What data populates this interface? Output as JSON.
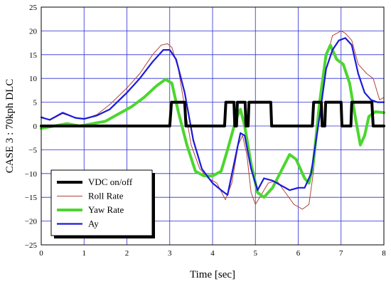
{
  "chart_data": {
    "type": "line",
    "title": "",
    "xlabel": "Time [sec]",
    "ylabel": "CASE 3 : 70kph DLC",
    "xlim": [
      0,
      8
    ],
    "ylim": [
      -25,
      25
    ],
    "x_ticks": [
      0,
      1,
      2,
      3,
      4,
      5,
      6,
      7,
      8
    ],
    "y_ticks": [
      25,
      20,
      15,
      10,
      5,
      0,
      -5,
      -10,
      -15,
      -20,
      -25
    ],
    "grid": true,
    "legend": {
      "placement": "bottom-left",
      "boxed": true
    },
    "series": [
      {
        "name": "VDC on/off",
        "color": "#000000",
        "style": "thick",
        "points": [
          [
            0,
            0
          ],
          [
            3.0,
            0
          ],
          [
            3.04,
            5
          ],
          [
            3.35,
            5
          ],
          [
            3.38,
            0
          ],
          [
            4.28,
            0
          ],
          [
            4.31,
            5
          ],
          [
            4.5,
            5
          ],
          [
            4.52,
            0
          ],
          [
            4.56,
            0
          ],
          [
            4.58,
            5
          ],
          [
            4.76,
            5
          ],
          [
            4.78,
            0
          ],
          [
            4.83,
            0
          ],
          [
            4.85,
            5
          ],
          [
            5.36,
            5
          ],
          [
            5.38,
            0
          ],
          [
            6.33,
            0
          ],
          [
            6.36,
            5
          ],
          [
            6.54,
            5
          ],
          [
            6.56,
            0
          ],
          [
            6.62,
            0
          ],
          [
            6.64,
            5
          ],
          [
            7.0,
            5
          ],
          [
            7.02,
            0
          ],
          [
            7.23,
            0
          ],
          [
            7.25,
            5
          ],
          [
            7.72,
            5
          ],
          [
            7.75,
            0
          ],
          [
            8,
            0
          ]
        ]
      },
      {
        "name": "Roll Rate",
        "color": "#b0463a",
        "style": "thin",
        "points": [
          [
            0,
            2
          ],
          [
            0.2,
            1.2
          ],
          [
            0.5,
            2.6
          ],
          [
            0.8,
            1.8
          ],
          [
            1.0,
            1.5
          ],
          [
            1.3,
            2.4
          ],
          [
            1.6,
            4.5
          ],
          [
            2.0,
            8
          ],
          [
            2.3,
            11
          ],
          [
            2.6,
            15
          ],
          [
            2.8,
            17
          ],
          [
            2.95,
            17.3
          ],
          [
            3.05,
            16.5
          ],
          [
            3.2,
            12
          ],
          [
            3.35,
            4
          ],
          [
            3.5,
            -4
          ],
          [
            3.7,
            -9
          ],
          [
            3.9,
            -11
          ],
          [
            4.1,
            -12
          ],
          [
            4.3,
            -15.5
          ],
          [
            4.45,
            -12
          ],
          [
            4.6,
            -4
          ],
          [
            4.7,
            -2
          ],
          [
            4.8,
            -6
          ],
          [
            4.9,
            -14
          ],
          [
            5.0,
            -16.5
          ],
          [
            5.1,
            -15
          ],
          [
            5.3,
            -12
          ],
          [
            5.5,
            -11.5
          ],
          [
            5.7,
            -14
          ],
          [
            5.9,
            -16.5
          ],
          [
            6.1,
            -17.5
          ],
          [
            6.25,
            -16.5
          ],
          [
            6.35,
            -10
          ],
          [
            6.5,
            3
          ],
          [
            6.65,
            14
          ],
          [
            6.8,
            19
          ],
          [
            7.0,
            20
          ],
          [
            7.1,
            19.5
          ],
          [
            7.25,
            18
          ],
          [
            7.4,
            13
          ],
          [
            7.6,
            11
          ],
          [
            7.75,
            10
          ],
          [
            7.9,
            5.5
          ],
          [
            8.0,
            6
          ]
        ]
      },
      {
        "name": "Yaw Rate",
        "color": "#4cd62e",
        "style": "thick",
        "points": [
          [
            0,
            -0.5
          ],
          [
            0.3,
            0
          ],
          [
            0.6,
            0.5
          ],
          [
            0.9,
            0
          ],
          [
            1.2,
            0.5
          ],
          [
            1.5,
            1
          ],
          [
            1.8,
            2.5
          ],
          [
            2.1,
            4
          ],
          [
            2.4,
            6
          ],
          [
            2.7,
            8.5
          ],
          [
            2.9,
            9.8
          ],
          [
            3.05,
            9
          ],
          [
            3.2,
            3
          ],
          [
            3.4,
            -4
          ],
          [
            3.6,
            -9.5
          ],
          [
            3.8,
            -10.5
          ],
          [
            4.0,
            -10.5
          ],
          [
            4.2,
            -9.5
          ],
          [
            4.35,
            -5
          ],
          [
            4.55,
            1.5
          ],
          [
            4.65,
            3.5
          ],
          [
            4.75,
            0
          ],
          [
            4.9,
            -8
          ],
          [
            5.05,
            -14
          ],
          [
            5.2,
            -15
          ],
          [
            5.4,
            -13
          ],
          [
            5.6,
            -9.5
          ],
          [
            5.8,
            -6
          ],
          [
            5.95,
            -7
          ],
          [
            6.15,
            -11
          ],
          [
            6.25,
            -12
          ],
          [
            6.35,
            -8
          ],
          [
            6.5,
            5
          ],
          [
            6.65,
            15
          ],
          [
            6.75,
            17
          ],
          [
            6.9,
            14
          ],
          [
            7.05,
            13
          ],
          [
            7.2,
            9
          ],
          [
            7.35,
            1
          ],
          [
            7.45,
            -4
          ],
          [
            7.55,
            -2
          ],
          [
            7.65,
            2
          ],
          [
            7.8,
            3
          ],
          [
            8.0,
            2.8
          ]
        ]
      },
      {
        "name": "Ay",
        "color": "#1c1ad8",
        "style": "medium",
        "points": [
          [
            0,
            1.8
          ],
          [
            0.2,
            1.3
          ],
          [
            0.5,
            2.8
          ],
          [
            0.8,
            1.7
          ],
          [
            1.0,
            1.5
          ],
          [
            1.3,
            2.2
          ],
          [
            1.6,
            3.5
          ],
          [
            2.0,
            7
          ],
          [
            2.3,
            10
          ],
          [
            2.6,
            13.5
          ],
          [
            2.85,
            16
          ],
          [
            3.0,
            16
          ],
          [
            3.15,
            14
          ],
          [
            3.35,
            7
          ],
          [
            3.55,
            -3
          ],
          [
            3.75,
            -9
          ],
          [
            4.0,
            -12
          ],
          [
            4.2,
            -13.5
          ],
          [
            4.35,
            -14.5
          ],
          [
            4.5,
            -8
          ],
          [
            4.65,
            -1.5
          ],
          [
            4.75,
            -2
          ],
          [
            4.9,
            -9
          ],
          [
            5.05,
            -13.5
          ],
          [
            5.2,
            -11
          ],
          [
            5.4,
            -11.5
          ],
          [
            5.6,
            -12.5
          ],
          [
            5.8,
            -13.5
          ],
          [
            6.0,
            -13
          ],
          [
            6.15,
            -13
          ],
          [
            6.3,
            -10
          ],
          [
            6.5,
            2
          ],
          [
            6.65,
            12
          ],
          [
            6.8,
            16
          ],
          [
            6.95,
            18
          ],
          [
            7.1,
            18.5
          ],
          [
            7.25,
            17
          ],
          [
            7.4,
            11
          ],
          [
            7.55,
            7
          ],
          [
            7.7,
            5.5
          ],
          [
            7.85,
            5
          ],
          [
            8.0,
            5
          ]
        ]
      }
    ]
  }
}
